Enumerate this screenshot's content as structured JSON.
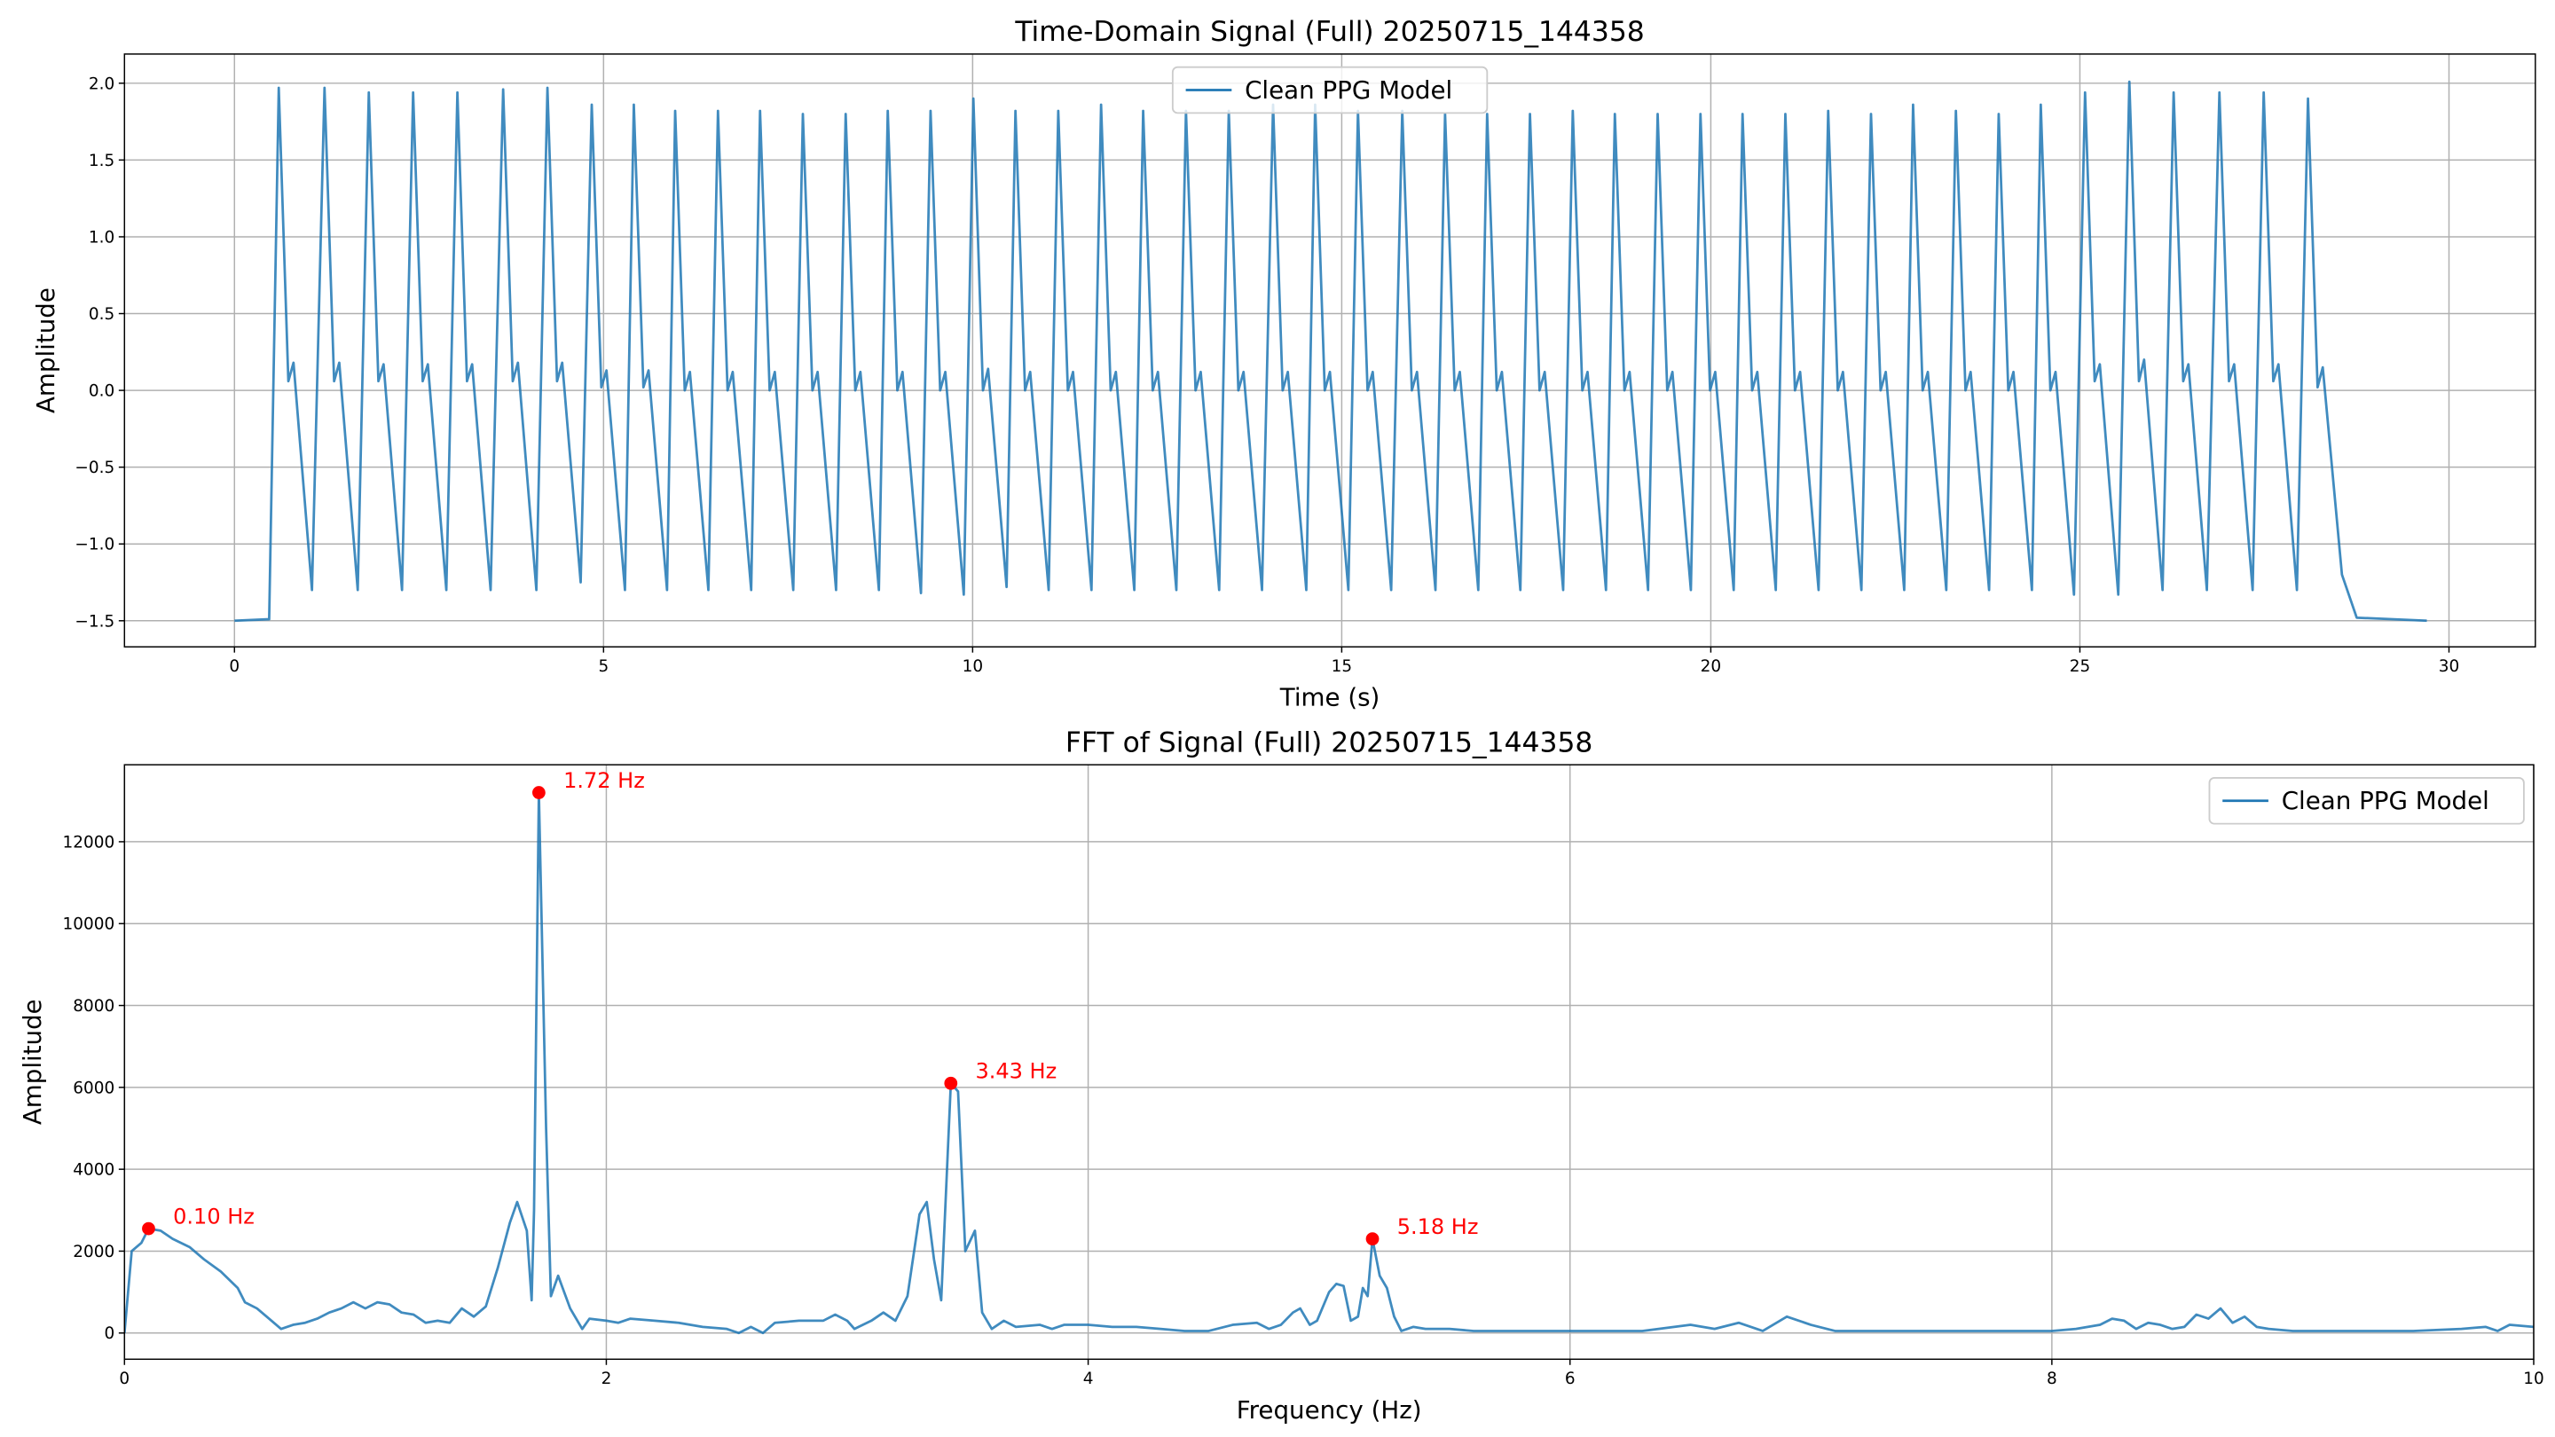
{
  "chart_data": [
    {
      "type": "line",
      "title": "Time-Domain Signal (Full) 20250715_144358",
      "xlabel": "Time (s)",
      "ylabel": "Amplitude",
      "xlim": [
        -1.49,
        31.17
      ],
      "ylim": [
        -1.67,
        2.19
      ],
      "xticks": [
        0,
        5,
        10,
        15,
        20,
        25,
        30
      ],
      "yticks": [
        {
          "value": -1.5,
          "label": "−1.5"
        },
        {
          "value": -1.0,
          "label": "−1.0"
        },
        {
          "value": -0.5,
          "label": "−0.5"
        },
        {
          "value": 0.0,
          "label": "0.0"
        },
        0.5,
        {
          "value": 1.0,
          "label": "1.0"
        },
        1.5,
        {
          "value": 2.0,
          "label": "2.0"
        }
      ],
      "grid": true,
      "legend": "upper center",
      "series": [
        {
          "name": "Clean PPG Model",
          "color": "#1f77b4",
          "x": [
            0,
            0.47,
            0.6,
            0.73,
            0.8,
            1.05,
            1.22,
            1.35,
            1.42,
            1.67,
            1.82,
            1.95,
            2.02,
            2.27,
            2.42,
            2.55,
            2.62,
            2.87,
            3.02,
            3.15,
            3.22,
            3.47,
            3.64,
            3.77,
            3.84,
            4.09,
            4.24,
            4.37,
            4.44,
            4.69,
            4.84,
            4.97,
            5.04,
            5.29,
            5.41,
            5.54,
            5.61,
            5.86,
            5.97,
            6.1,
            6.17,
            6.42,
            6.55,
            6.68,
            6.75,
            7,
            7.12,
            7.25,
            7.32,
            7.57,
            7.7,
            7.83,
            7.9,
            8.15,
            8.28,
            8.41,
            8.48,
            8.73,
            8.85,
            8.98,
            9.05,
            9.3,
            9.43,
            9.56,
            9.63,
            9.88,
            10.01,
            10.14,
            10.21,
            10.46,
            10.58,
            10.71,
            10.78,
            11.03,
            11.16,
            11.29,
            11.36,
            11.61,
            11.74,
            11.87,
            11.94,
            12.19,
            12.31,
            12.44,
            12.51,
            12.76,
            12.89,
            13.02,
            13.09,
            13.34,
            13.47,
            13.6,
            13.67,
            13.92,
            14.07,
            14.2,
            14.27,
            14.52,
            14.64,
            14.77,
            14.84,
            15.09,
            15.22,
            15.35,
            15.42,
            15.67,
            15.82,
            15.95,
            16.02,
            16.27,
            16.4,
            16.53,
            16.6,
            16.85,
            16.97,
            17.1,
            17.17,
            17.42,
            17.55,
            17.68,
            17.75,
            18,
            18.13,
            18.26,
            18.33,
            18.58,
            18.7,
            18.83,
            18.9,
            19.15,
            19.28,
            19.41,
            19.48,
            19.73,
            19.86,
            19.99,
            20.06,
            20.31,
            20.43,
            20.56,
            20.63,
            20.88,
            21.01,
            21.14,
            21.21,
            21.46,
            21.59,
            21.72,
            21.79,
            22.04,
            22.17,
            22.3,
            22.37,
            22.62,
            22.74,
            22.87,
            22.94,
            23.19,
            23.32,
            23.45,
            23.52,
            23.77,
            23.9,
            24.03,
            24.1,
            24.35,
            24.47,
            24.6,
            24.67,
            24.92,
            25.07,
            25.2,
            25.27,
            25.52,
            25.67,
            25.8,
            25.87,
            26.12,
            26.27,
            26.4,
            26.47,
            26.72,
            26.89,
            27.02,
            27.09,
            27.34,
            27.49,
            27.62,
            27.69,
            27.94,
            28.09,
            28.22,
            28.29,
            28.55,
            28.75,
            29.7
          ],
          "values": [
            -1.5,
            -1.49,
            1.97,
            0.06,
            0.18,
            -1.3,
            1.97,
            0.06,
            0.18,
            -1.3,
            1.94,
            0.06,
            0.17,
            -1.3,
            1.94,
            0.06,
            0.17,
            -1.3,
            1.94,
            0.06,
            0.17,
            -1.3,
            1.96,
            0.06,
            0.18,
            -1.3,
            1.97,
            0.06,
            0.18,
            -1.25,
            1.86,
            0.02,
            0.13,
            -1.3,
            1.86,
            0.02,
            0.13,
            -1.3,
            1.82,
            0.0,
            0.12,
            -1.3,
            1.82,
            0.0,
            0.12,
            -1.3,
            1.82,
            0.0,
            0.12,
            -1.3,
            1.8,
            0.0,
            0.12,
            -1.3,
            1.8,
            0.0,
            0.12,
            -1.3,
            1.82,
            0.0,
            0.12,
            -1.32,
            1.82,
            0.0,
            0.12,
            -1.33,
            1.9,
            0.0,
            0.14,
            -1.28,
            1.82,
            0.0,
            0.12,
            -1.3,
            1.82,
            0.0,
            0.12,
            -1.3,
            1.86,
            0.0,
            0.12,
            -1.3,
            1.82,
            0.0,
            0.12,
            -1.3,
            1.82,
            0.0,
            0.12,
            -1.3,
            1.82,
            0.0,
            0.12,
            -1.3,
            1.86,
            0.0,
            0.12,
            -1.3,
            1.86,
            0.0,
            0.12,
            -1.3,
            1.82,
            0.0,
            0.12,
            -1.3,
            1.82,
            0.0,
            0.12,
            -1.3,
            1.8,
            0.0,
            0.12,
            -1.3,
            1.8,
            0.0,
            0.12,
            -1.3,
            1.8,
            0.0,
            0.12,
            -1.3,
            1.82,
            0.0,
            0.12,
            -1.3,
            1.8,
            0.0,
            0.12,
            -1.3,
            1.8,
            0.0,
            0.12,
            -1.3,
            1.8,
            0.0,
            0.12,
            -1.3,
            1.8,
            0.0,
            0.12,
            -1.3,
            1.8,
            0.0,
            0.12,
            -1.3,
            1.82,
            0.0,
            0.12,
            -1.3,
            1.8,
            0.0,
            0.12,
            -1.3,
            1.86,
            0.0,
            0.12,
            -1.3,
            1.82,
            0.0,
            0.12,
            -1.3,
            1.8,
            0.0,
            0.12,
            -1.3,
            1.86,
            0.0,
            0.12,
            -1.33,
            1.94,
            0.06,
            0.17,
            -1.33,
            2.01,
            0.06,
            0.2,
            -1.3,
            1.94,
            0.06,
            0.17,
            -1.3,
            1.94,
            0.06,
            0.17,
            -1.3,
            1.94,
            0.06,
            0.17,
            -1.3,
            1.9,
            0.02,
            0.15,
            -1.2,
            -1.48,
            -1.5
          ]
        }
      ]
    },
    {
      "type": "line",
      "title": "FFT of Signal (Full) 20250715_144358",
      "xlabel": "Frequency (Hz)",
      "ylabel": "Amplitude",
      "xlim": [
        0,
        10
      ],
      "ylim": [
        -640,
        13880
      ],
      "xticks": [
        0,
        2,
        4,
        6,
        8,
        10
      ],
      "yticks": [
        0,
        2000,
        4000,
        6000,
        8000,
        10000,
        12000
      ],
      "grid": true,
      "legend": "upper right",
      "series": [
        {
          "name": "Clean PPG Model",
          "color": "#1f77b4",
          "x": [
            0,
            0.03,
            0.07,
            0.1,
            0.15,
            0.2,
            0.27,
            0.33,
            0.4,
            0.47,
            0.5,
            0.55,
            0.6,
            0.65,
            0.7,
            0.75,
            0.8,
            0.85,
            0.9,
            0.95,
            1.0,
            1.05,
            1.1,
            1.15,
            1.2,
            1.25,
            1.3,
            1.35,
            1.4,
            1.45,
            1.5,
            1.55,
            1.6,
            1.63,
            1.67,
            1.69,
            1.7,
            1.72,
            1.75,
            1.77,
            1.8,
            1.85,
            1.9,
            1.93,
            2.0,
            2.05,
            2.1,
            2.2,
            2.3,
            2.4,
            2.5,
            2.55,
            2.6,
            2.65,
            2.7,
            2.8,
            2.9,
            2.95,
            3.0,
            3.03,
            3.1,
            3.15,
            3.2,
            3.25,
            3.3,
            3.33,
            3.36,
            3.39,
            3.43,
            3.46,
            3.49,
            3.53,
            3.56,
            3.6,
            3.65,
            3.7,
            3.8,
            3.85,
            3.9,
            4.0,
            4.1,
            4.2,
            4.3,
            4.4,
            4.5,
            4.6,
            4.7,
            4.75,
            4.8,
            4.85,
            4.88,
            4.92,
            4.95,
            5.0,
            5.03,
            5.06,
            5.09,
            5.12,
            5.14,
            5.16,
            5.18,
            5.21,
            5.24,
            5.27,
            5.3,
            5.35,
            5.4,
            5.5,
            5.6,
            5.8,
            6.0,
            6.3,
            6.5,
            6.6,
            6.7,
            6.8,
            6.9,
            7.0,
            7.1,
            7.5,
            8.0,
            8.1,
            8.2,
            8.25,
            8.3,
            8.35,
            8.4,
            8.45,
            8.5,
            8.55,
            8.6,
            8.65,
            8.7,
            8.75,
            8.8,
            8.85,
            8.9,
            9.0,
            9.5,
            9.7,
            9.8,
            9.85,
            9.9,
            10.0
          ],
          "values": [
            0,
            2000,
            2200,
            2550,
            2500,
            2300,
            2100,
            1800,
            1500,
            1100,
            750,
            600,
            350,
            100,
            200,
            250,
            350,
            500,
            600,
            750,
            600,
            750,
            700,
            500,
            450,
            250,
            300,
            250,
            600,
            400,
            650,
            1600,
            2700,
            3200,
            2500,
            800,
            3000,
            13200,
            5000,
            900,
            1400,
            600,
            100,
            350,
            300,
            250,
            350,
            300,
            250,
            150,
            100,
            0,
            150,
            0,
            250,
            300,
            300,
            450,
            300,
            100,
            300,
            500,
            300,
            900,
            2900,
            3200,
            1800,
            800,
            6100,
            5900,
            2000,
            2500,
            500,
            100,
            300,
            150,
            200,
            100,
            200,
            200,
            150,
            150,
            100,
            50,
            50,
            200,
            250,
            100,
            200,
            500,
            600,
            200,
            300,
            1000,
            1200,
            1150,
            300,
            400,
            1100,
            900,
            2300,
            1400,
            1100,
            400,
            50,
            150,
            100,
            100,
            50,
            50,
            50,
            50,
            200,
            100,
            250,
            50,
            400,
            200,
            50,
            50,
            50,
            100,
            200,
            350,
            300,
            100,
            250,
            200,
            100,
            150,
            450,
            350,
            600,
            250,
            400,
            150,
            100,
            50,
            50,
            100,
            150,
            50,
            200,
            150
          ]
        }
      ],
      "peak_color": "#ff0000",
      "peaks": [
        {
          "x": 0.1,
          "y": 2550,
          "label": "0.10 Hz"
        },
        {
          "x": 1.72,
          "y": 13200,
          "label": "1.72 Hz"
        },
        {
          "x": 3.43,
          "y": 6100,
          "label": "3.43 Hz"
        },
        {
          "x": 5.18,
          "y": 2300,
          "label": "5.18 Hz"
        }
      ]
    }
  ]
}
